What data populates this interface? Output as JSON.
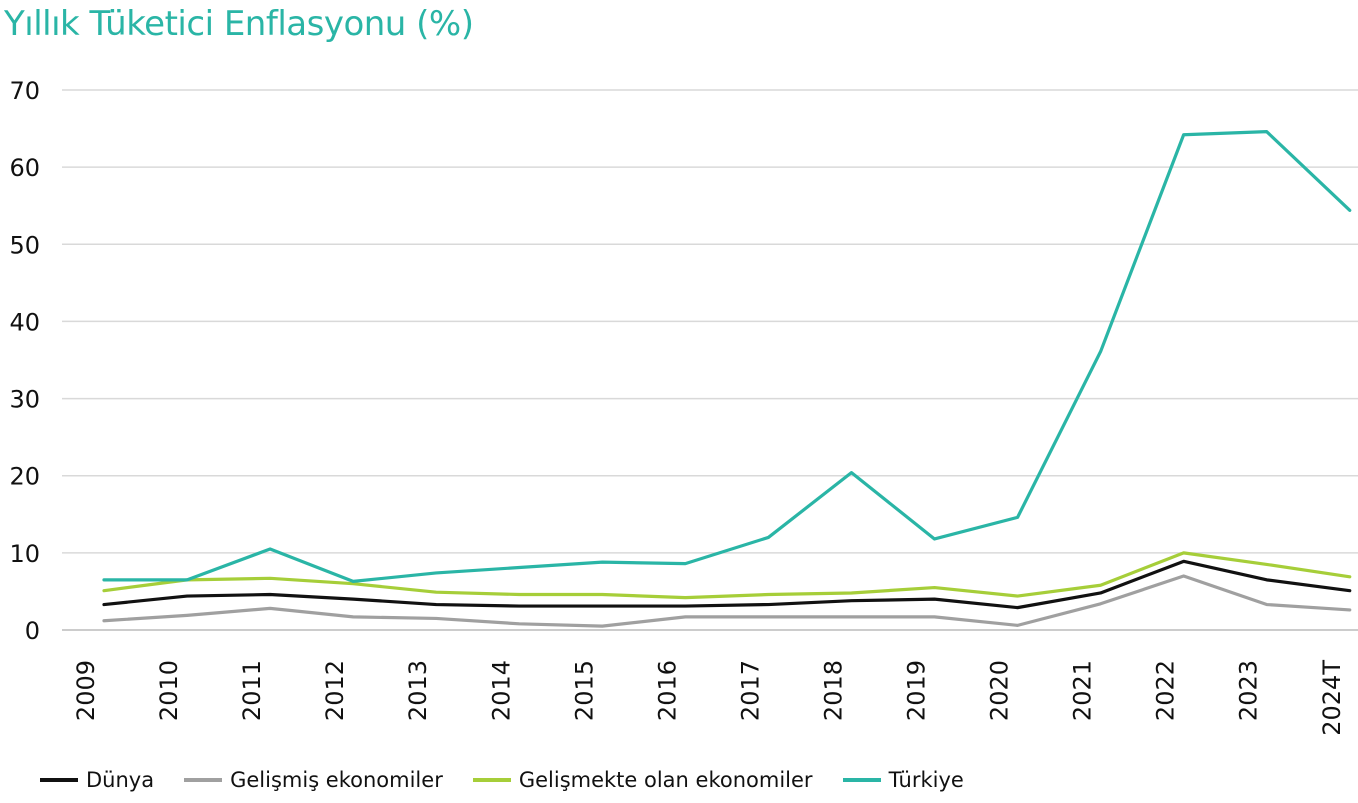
{
  "chart_data": {
    "type": "line",
    "title": "Yıllık Tüketici Enflasyonu (%)",
    "xlabel": "",
    "ylabel": "",
    "categories": [
      "2009",
      "2010",
      "2011",
      "2012",
      "2013",
      "2014",
      "2015",
      "2016",
      "2017",
      "2018",
      "2019",
      "2020",
      "2021",
      "2022",
      "2023",
      "2024T"
    ],
    "ylim": [
      0,
      70
    ],
    "yticks": [
      0,
      10,
      20,
      30,
      40,
      50,
      60,
      70
    ],
    "grid": "horizontal",
    "legend_position": "bottom",
    "series": [
      {
        "name": "Dünya",
        "color": "#111111",
        "values": [
          3.3,
          4.4,
          4.6,
          4.0,
          3.3,
          3.1,
          3.1,
          3.1,
          3.3,
          3.8,
          4.0,
          2.9,
          4.8,
          8.9,
          6.5,
          5.1
        ]
      },
      {
        "name": "Gelişmiş ekonomiler",
        "color": "#a0a0a0",
        "values": [
          1.2,
          1.9,
          2.8,
          1.7,
          1.5,
          0.8,
          0.5,
          1.7,
          1.7,
          1.7,
          1.7,
          0.6,
          3.4,
          7.0,
          3.3,
          2.6
        ]
      },
      {
        "name": "Gelişmekte olan ekonomiler",
        "color": "#a6ce39",
        "values": [
          5.1,
          6.5,
          6.7,
          6.0,
          4.9,
          4.6,
          4.6,
          4.2,
          4.6,
          4.8,
          5.5,
          4.4,
          5.8,
          10.0,
          8.5,
          6.9
        ]
      },
      {
        "name": "Türkiye",
        "color": "#2ab5a6",
        "values": [
          6.5,
          6.5,
          10.5,
          6.3,
          7.4,
          8.1,
          8.8,
          8.6,
          12.0,
          20.4,
          11.8,
          14.6,
          36.1,
          64.2,
          64.6,
          54.4
        ]
      }
    ]
  }
}
